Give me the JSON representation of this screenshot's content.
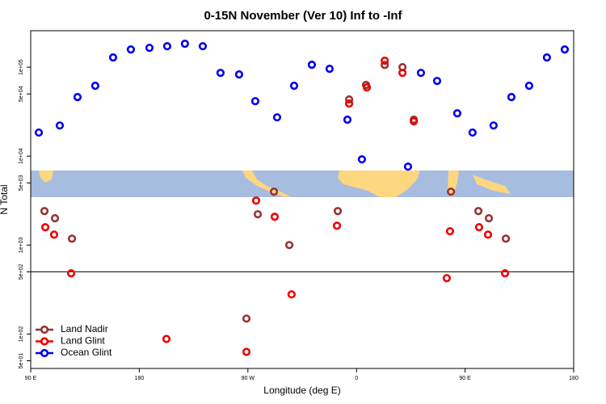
{
  "chart_data": {
    "type": "scatter",
    "title": "0-15N November (Ver 10)   Inf to -Inf",
    "xlabel": "Longitude (deg E)",
    "ylabel": "N Total",
    "xlim": [
      90,
      540
    ],
    "ylim": [
      41,
      257000
    ],
    "log_y": true,
    "xticks": [
      {
        "value": 90,
        "label": "90 E"
      },
      180,
      {
        "value": 270,
        "label": "90 W"
      },
      {
        "value": 360,
        "label": "0"
      },
      {
        "value": 450,
        "label": "90 E"
      },
      {
        "value": 540,
        "label": "180"
      }
    ],
    "yticks": [
      {
        "value": 50,
        "label": "5e+01"
      },
      {
        "value": 100,
        "label": "1e+02"
      },
      {
        "value": 500,
        "label": "5e+02"
      },
      {
        "value": 1000,
        "label": "1e+03"
      },
      {
        "value": 5000,
        "label": "5e+03"
      },
      {
        "value": 10000,
        "label": "1e+04"
      },
      {
        "value": 50000,
        "label": "5e+04"
      },
      {
        "value": 100000,
        "label": "1e+05"
      }
    ],
    "reference_line": 500,
    "legend": "bottom-left",
    "series": [
      {
        "name": "Land Nadir",
        "color": "#993333",
        "x": [
          101.4,
          110.1,
          124.2,
          268.8,
          278.2,
          291.6,
          304.3,
          344.5,
          353.9,
          367.9,
          383.4,
          398.1,
          407.5,
          438.3,
          461.0,
          469.7,
          483.8
        ],
        "values": [
          2410,
          2000,
          1180,
          149,
          2220,
          3980,
          1000,
          2410,
          43300,
          63100,
          106000,
          100000,
          25700,
          3980,
          2410,
          2000,
          1180
        ]
      },
      {
        "name": "Land Glint",
        "color": "#ee0000",
        "x": [
          102.1,
          109.4,
          123.5,
          202.5,
          268.8,
          276.8,
          292.2,
          306.2,
          343.8,
          353.9,
          368.6,
          383.4,
          398.1,
          407.5,
          434.8,
          437.5,
          461.6,
          469.0,
          483.1
        ],
        "values": [
          1585,
          1310,
          481,
          88,
          63,
          3160,
          2080,
          279,
          1650,
          39000,
          59300,
          118300,
          86300,
          24600,
          424,
          1430,
          1585,
          1310,
          481
        ]
      },
      {
        "name": "Ocean Glint",
        "color": "#0000ee",
        "x": [
          96.7,
          114.1,
          128.8,
          143.5,
          158.3,
          173.0,
          188.4,
          203.1,
          217.8,
          232.6,
          247.3,
          262.7,
          276.1,
          294.2,
          308.3,
          323.0,
          337.7,
          352.5,
          364.5,
          402.7,
          413.4,
          426.8,
          443.5,
          456.2,
          473.6,
          488.4,
          503.1,
          517.8,
          532.6
        ],
        "values": [
          18400,
          22100,
          46100,
          61800,
          128500,
          158000,
          165000,
          172000,
          183500,
          172000,
          86300,
          82800,
          41500,
          27300,
          61800,
          106400,
          95900,
          25700,
          9200,
          7620,
          86300,
          70000,
          30300,
          18400,
          22100,
          46100,
          61800,
          128500,
          158000
        ]
      }
    ]
  }
}
